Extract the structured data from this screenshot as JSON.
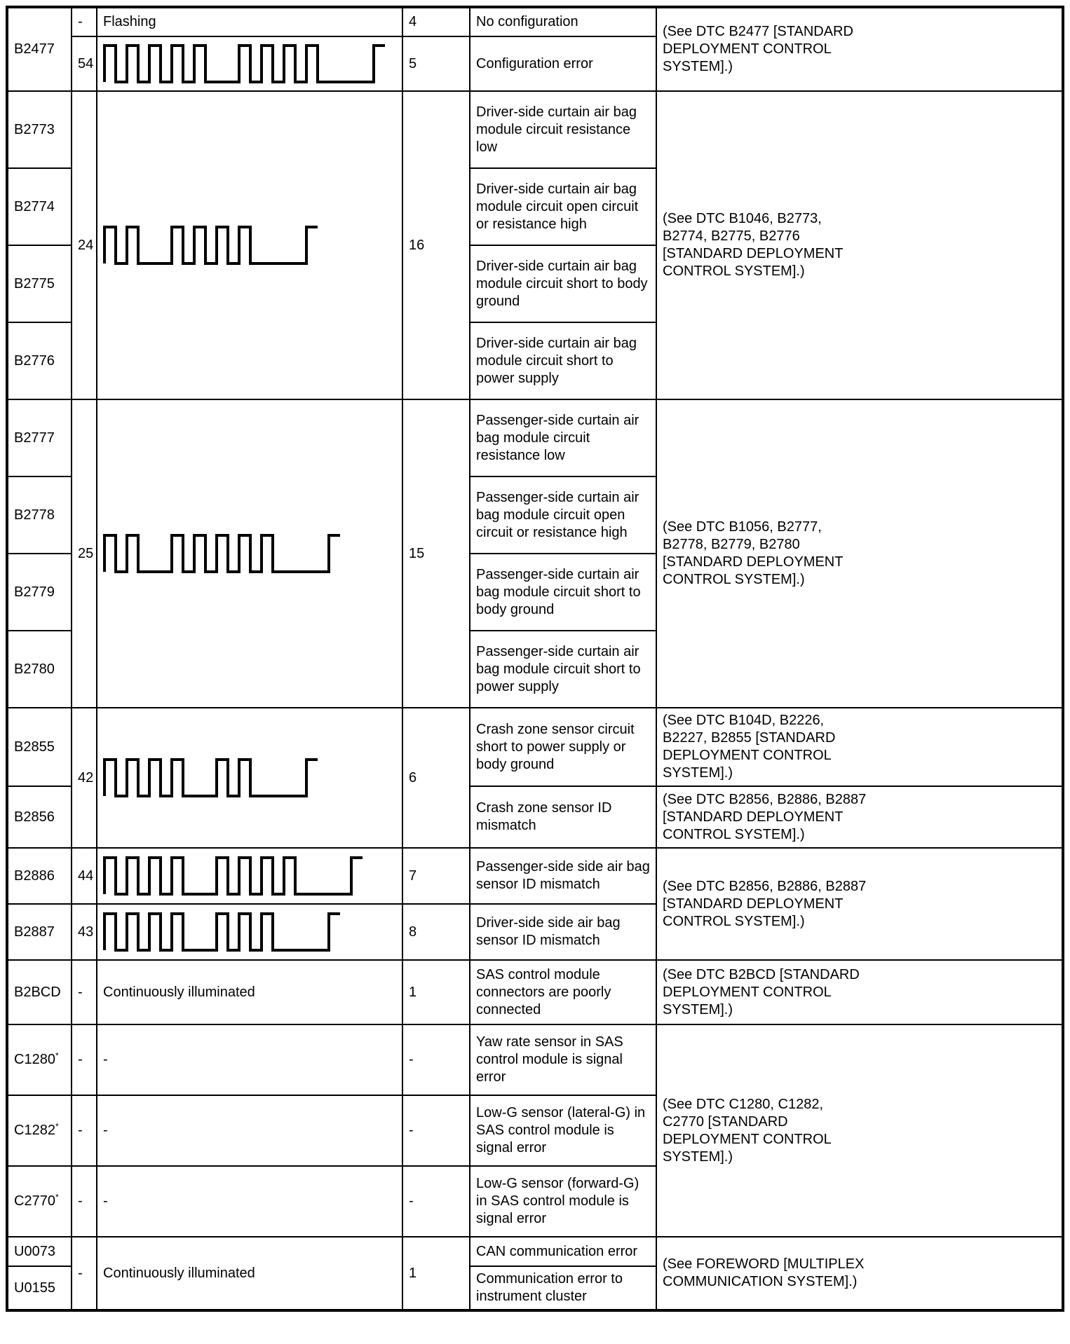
{
  "page": {
    "background_color": "#ffffff",
    "text_color": "#000000",
    "border_color": "#000000"
  },
  "symbols": {
    "dash": "-",
    "star": "*"
  },
  "waveforms": {
    "54": {
      "groups": [
        5,
        4
      ]
    },
    "24": {
      "groups": [
        2,
        4
      ]
    },
    "25": {
      "groups": [
        2,
        5
      ]
    },
    "42": {
      "groups": [
        4,
        2
      ]
    },
    "44": {
      "groups": [
        4,
        4
      ]
    },
    "43": {
      "groups": [
        4,
        3
      ]
    }
  },
  "table": {
    "b2477": {
      "dtc": "B2477",
      "ref": "(See DTC B2477 [STANDARD\nDEPLOYMENT CONTROL\nSYSTEM].)",
      "row1": {
        "flash_code": "-",
        "pattern_text": "Flashing",
        "count": "4",
        "description": "No configuration"
      },
      "row2": {
        "flash_code": "54",
        "count": "5",
        "description": "Configuration error"
      }
    },
    "driver_curtain": {
      "flash_code": "24",
      "count": "16",
      "ref": "(See DTC B1046, B2773,\nB2774, B2775, B2776\n[STANDARD DEPLOYMENT\nCONTROL SYSTEM].)",
      "rows": [
        {
          "dtc": "B2773",
          "description": "Driver-side curtain air bag\nmodule circuit resistance\nlow"
        },
        {
          "dtc": "B2774",
          "description": "Driver-side curtain air bag\nmodule circuit open circuit\nor resistance high"
        },
        {
          "dtc": "B2775",
          "description": "Driver-side curtain air bag\nmodule circuit short to body\nground"
        },
        {
          "dtc": "B2776",
          "description": "Driver-side curtain air bag\nmodule circuit short to\npower supply"
        }
      ]
    },
    "passenger_curtain": {
      "flash_code": "25",
      "count": "15",
      "ref": "(See DTC B1056, B2777,\nB2778, B2779, B2780\n[STANDARD DEPLOYMENT\nCONTROL SYSTEM].)",
      "rows": [
        {
          "dtc": "B2777",
          "description": "Passenger-side curtain air\nbag module circuit\nresistance low"
        },
        {
          "dtc": "B2778",
          "description": "Passenger-side curtain air\nbag module circuit open\ncircuit or resistance high"
        },
        {
          "dtc": "B2779",
          "description": "Passenger-side curtain air\nbag module circuit short to\nbody ground"
        },
        {
          "dtc": "B2780",
          "description": "Passenger-side curtain air\nbag module circuit short to\npower supply"
        }
      ]
    },
    "crash_zone": {
      "flash_code": "42",
      "count": "6",
      "rows": [
        {
          "dtc": "B2855",
          "description": "Crash zone sensor circuit\nshort to power supply or\nbody ground",
          "ref": "(See DTC B104D, B2226,\nB2227, B2855 [STANDARD\nDEPLOYMENT CONTROL\nSYSTEM].)"
        },
        {
          "dtc": "B2856",
          "description": "Crash zone sensor ID\nmismatch",
          "ref": "(See DTC B2856, B2886, B2887\n[STANDARD DEPLOYMENT\nCONTROL SYSTEM].)"
        }
      ]
    },
    "side_airbag": {
      "ref": "(See DTC B2856, B2886, B2887\n[STANDARD DEPLOYMENT\nCONTROL SYSTEM].)",
      "rows": [
        {
          "dtc": "B2886",
          "flash_code": "44",
          "count": "7",
          "description": "Passenger-side side air bag\nsensor ID mismatch"
        },
        {
          "dtc": "B2887",
          "flash_code": "43",
          "count": "8",
          "description": "Driver-side side air bag\nsensor ID mismatch"
        }
      ]
    },
    "b2bcd": {
      "dtc": "B2BCD",
      "flash_code": "-",
      "pattern_text": "Continuously illuminated",
      "count": "1",
      "description": "SAS control module\nconnectors are poorly\nconnected",
      "ref": "(See DTC B2BCD [STANDARD\nDEPLOYMENT CONTROL\nSYSTEM].)"
    },
    "sas_sensors": {
      "ref": "(See DTC C1280, C1282,\nC2770 [STANDARD\nDEPLOYMENT CONTROL\nSYSTEM].)",
      "rows": [
        {
          "dtc": "C1280",
          "flash_code": "-",
          "pattern_text": "-",
          "count": "-",
          "description": "Yaw rate sensor in SAS\ncontrol module is signal\nerror"
        },
        {
          "dtc": "C1282",
          "flash_code": "-",
          "pattern_text": "-",
          "count": "-",
          "description": "Low-G sensor (lateral-G) in\nSAS control module is\nsignal error"
        },
        {
          "dtc": "C2770",
          "flash_code": "-",
          "pattern_text": "-",
          "count": "-",
          "description": "Low-G sensor (forward-G)\nin SAS control module is\nsignal error"
        }
      ]
    },
    "can_comm": {
      "flash_code": "-",
      "pattern_text": "Continuously illuminated",
      "count": "1",
      "ref": "(See FOREWORD [MULTIPLEX\nCOMMUNICATION SYSTEM].)",
      "rows": [
        {
          "dtc": "U0073",
          "description": "CAN communication error"
        },
        {
          "dtc": "U0155",
          "description": "Communication error to\ninstrument cluster"
        }
      ]
    }
  }
}
